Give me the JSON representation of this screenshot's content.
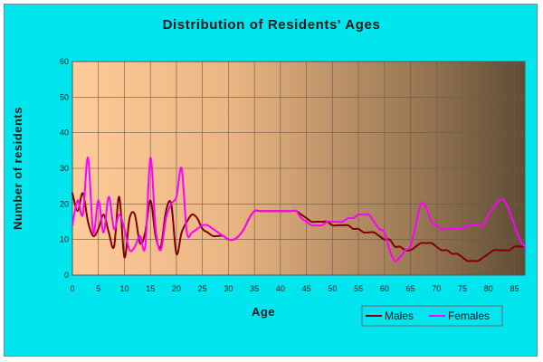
{
  "chart_data": {
    "type": "line",
    "title": "Distribution of Residents' Ages",
    "xlabel": "Age",
    "ylabel": "Number of residents",
    "xlim": [
      0,
      87
    ],
    "ylim": [
      0,
      60
    ],
    "xticks": [
      0,
      5,
      10,
      15,
      20,
      25,
      30,
      35,
      40,
      45,
      50,
      55,
      60,
      65,
      70,
      75,
      80,
      85
    ],
    "yticks": [
      0,
      10,
      20,
      30,
      40,
      50,
      60
    ],
    "grid": true,
    "legend_position": "bottom-right",
    "series": [
      {
        "name": "Males",
        "color": "#800000",
        "x": [
          0,
          1,
          2,
          3,
          4,
          5,
          6,
          7,
          8,
          9,
          10,
          11,
          12,
          13,
          14,
          15,
          16,
          17,
          18,
          19,
          20,
          21,
          22,
          23,
          24,
          25,
          26,
          27,
          28,
          29,
          30,
          31,
          32,
          33,
          34,
          35,
          36,
          37,
          38,
          39,
          40,
          41,
          42,
          43,
          44,
          45,
          46,
          47,
          48,
          49,
          50,
          51,
          52,
          53,
          54,
          55,
          56,
          57,
          58,
          59,
          60,
          61,
          62,
          63,
          64,
          65,
          66,
          67,
          68,
          69,
          70,
          71,
          72,
          73,
          74,
          75,
          76,
          77,
          78,
          79,
          80,
          81,
          82,
          83,
          84,
          85,
          86,
          87
        ],
        "values": [
          23,
          18,
          23,
          15,
          11,
          13,
          17,
          12,
          8,
          22,
          5,
          16,
          17,
          9,
          12,
          21,
          11,
          8,
          18,
          20,
          6,
          12,
          15,
          17,
          16,
          13,
          12,
          11,
          11,
          11,
          10,
          10,
          11,
          13,
          16,
          18,
          18,
          18,
          18,
          18,
          18,
          18,
          18,
          18,
          17,
          16,
          15,
          15,
          15,
          15,
          14,
          14,
          14,
          14,
          13,
          13,
          12,
          12,
          12,
          11,
          10,
          10,
          8,
          8,
          7,
          7,
          8,
          9,
          9,
          9,
          8,
          7,
          7,
          6,
          6,
          5,
          4,
          4,
          4,
          5,
          6,
          7,
          7,
          7,
          7,
          8,
          8,
          8
        ]
      },
      {
        "name": "Females",
        "color": "#ff00ff",
        "x": [
          0,
          1,
          2,
          3,
          4,
          5,
          6,
          7,
          8,
          9,
          10,
          11,
          12,
          13,
          14,
          15,
          16,
          17,
          18,
          19,
          20,
          21,
          22,
          23,
          24,
          25,
          26,
          27,
          28,
          29,
          30,
          31,
          32,
          33,
          34,
          35,
          36,
          37,
          38,
          39,
          40,
          41,
          42,
          43,
          44,
          45,
          46,
          47,
          48,
          49,
          50,
          51,
          52,
          53,
          54,
          55,
          56,
          57,
          58,
          59,
          60,
          61,
          62,
          63,
          64,
          65,
          66,
          67,
          68,
          69,
          70,
          71,
          72,
          73,
          74,
          75,
          76,
          77,
          78,
          79,
          80,
          81,
          82,
          83,
          84,
          85,
          86,
          87
        ],
        "values": [
          14,
          21,
          17,
          33,
          12,
          21,
          12,
          22,
          13,
          17,
          13,
          7,
          8,
          11,
          8,
          33,
          13,
          7,
          16,
          20,
          22,
          30,
          12,
          12,
          13,
          14,
          14,
          13,
          12,
          11,
          10,
          10,
          11,
          13,
          16,
          18,
          18,
          18,
          18,
          18,
          18,
          18,
          18,
          18,
          16,
          15,
          14,
          14,
          14,
          15,
          15,
          15,
          15,
          16,
          16,
          17,
          17,
          17,
          15,
          13,
          12,
          7,
          4,
          5,
          7,
          8,
          14,
          20,
          19,
          15,
          14,
          13,
          13,
          13,
          13,
          13,
          14,
          14,
          14,
          14,
          17,
          19,
          21,
          21,
          18,
          14,
          10,
          8
        ]
      }
    ]
  }
}
